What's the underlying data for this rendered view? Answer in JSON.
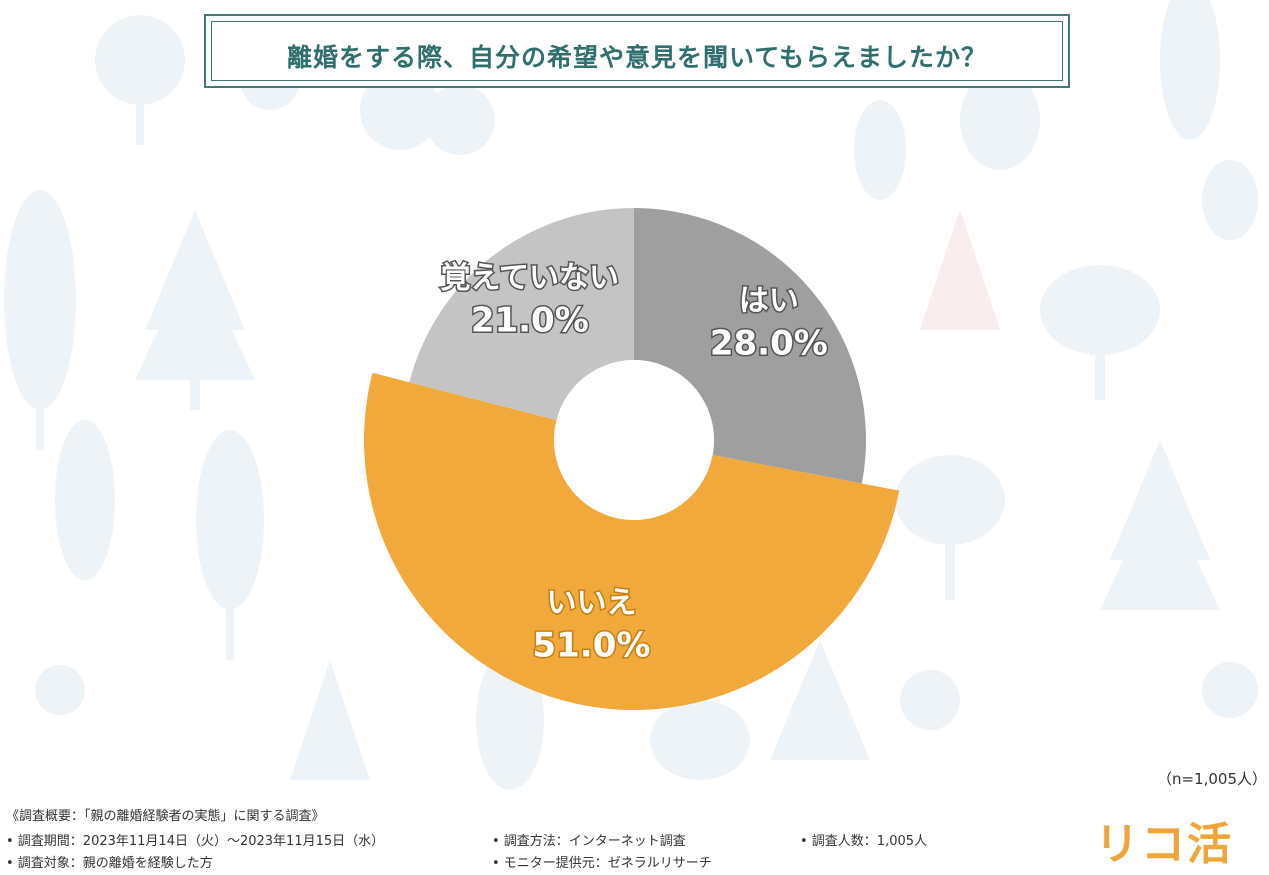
{
  "title": "離婚をする際、自分の希望や意見を聞いてもらえましたか？",
  "sample_size": "（n=1,005人）",
  "colors": {
    "yes": "#9f9f9f",
    "no": "#f0a93a",
    "unsure": "#c4c4c4",
    "title": "#2f6f6d",
    "accent": "#f0a53a"
  },
  "chart_data": {
    "type": "pie",
    "donut": true,
    "labels": [
      "はい",
      "いいえ",
      "覚えていない"
    ],
    "values": [
      28.0,
      51.0,
      21.0
    ],
    "value_labels": [
      "28.0%",
      "51.0%",
      "21.0%"
    ],
    "start": "12 o'clock",
    "direction": "clockwise"
  },
  "footer": {
    "overview": "《調査概要：「親の離婚経験者の実態」に関する調査》",
    "period": "• 調査期間：2023年11月14日（火）～2023年11月15日（水）",
    "method": "• 調査方法：インターネット調査",
    "count": "• 調査人数：1,005人",
    "target": "• 調査対象：親の離婚を経験した方",
    "provider": "• モニター提供元：ゼネラルリサーチ"
  },
  "logo": "リコ活"
}
